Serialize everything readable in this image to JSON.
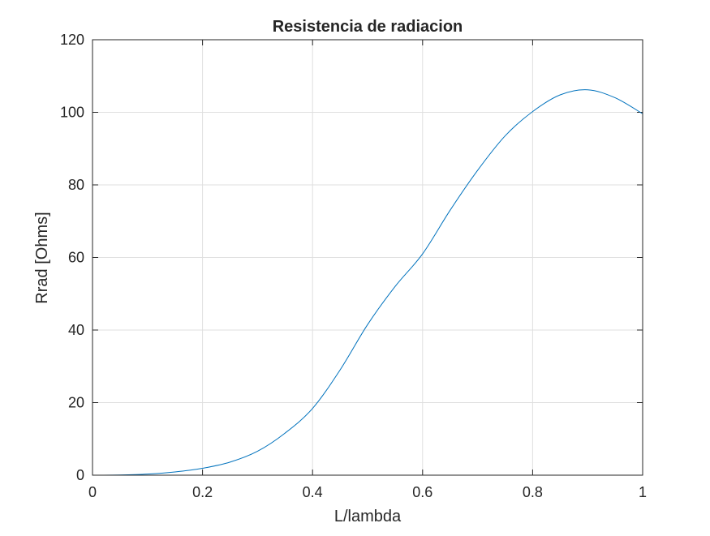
{
  "chart_data": {
    "type": "line",
    "title": "Resistencia de radiacion",
    "xlabel": "L/lambda",
    "ylabel": "Rrad [Ohms]",
    "xlim": [
      0,
      1
    ],
    "ylim": [
      0,
      120
    ],
    "xticks": [
      0,
      0.2,
      0.4,
      0.6,
      0.8,
      1
    ],
    "yticks": [
      0,
      20,
      40,
      60,
      80,
      100,
      120
    ],
    "xtick_labels": [
      "0",
      "0.2",
      "0.4",
      "0.6",
      "0.8",
      "1"
    ],
    "ytick_labels": [
      "0",
      "20",
      "40",
      "60",
      "80",
      "100",
      "120"
    ],
    "grid": true,
    "line_color": "#0072BD",
    "series": [
      {
        "x": [
          0,
          0.05,
          0.1,
          0.15,
          0.2,
          0.25,
          0.3,
          0.35,
          0.4,
          0.45,
          0.5,
          0.55,
          0.6,
          0.65,
          0.7,
          0.75,
          0.8,
          0.85,
          0.9,
          0.95,
          1.0
        ],
        "values": [
          0,
          0.05,
          0.3,
          0.9,
          1.9,
          3.6,
          6.6,
          11.6,
          18.4,
          29.0,
          41.5,
          52.0,
          61.0,
          73.0,
          84.0,
          93.5,
          100.2,
          104.8,
          106.2,
          104.0,
          99.6
        ]
      }
    ]
  }
}
